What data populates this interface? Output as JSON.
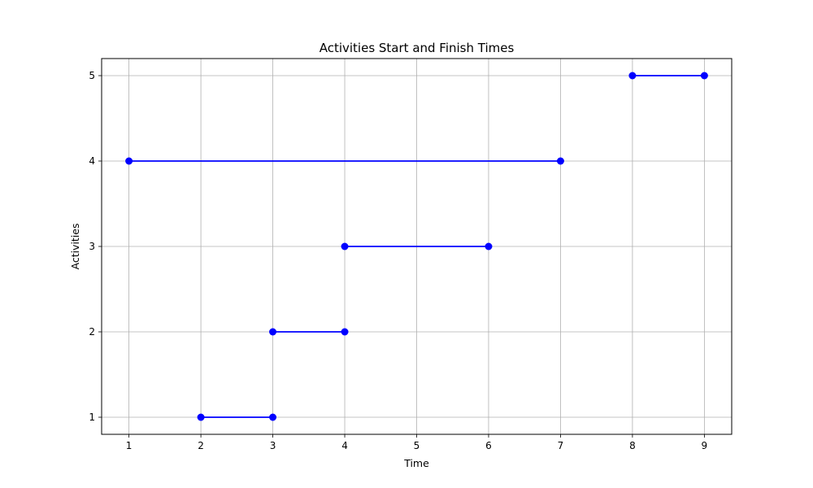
{
  "chart_data": {
    "type": "line",
    "title": "Activities Start and Finish Times",
    "xlabel": "Time",
    "ylabel": "Activities",
    "xlim": [
      0.62,
      9.38
    ],
    "ylim": [
      0.8,
      5.2
    ],
    "xticks": [
      1,
      2,
      3,
      4,
      5,
      6,
      7,
      8,
      9
    ],
    "yticks": [
      1,
      2,
      3,
      4,
      5
    ],
    "grid": true,
    "series_color": "#0000ff",
    "segments": [
      {
        "activity": 1,
        "start": 2,
        "finish": 3
      },
      {
        "activity": 2,
        "start": 3,
        "finish": 4
      },
      {
        "activity": 3,
        "start": 4,
        "finish": 6
      },
      {
        "activity": 4,
        "start": 1,
        "finish": 7
      },
      {
        "activity": 5,
        "start": 8,
        "finish": 9
      }
    ]
  }
}
